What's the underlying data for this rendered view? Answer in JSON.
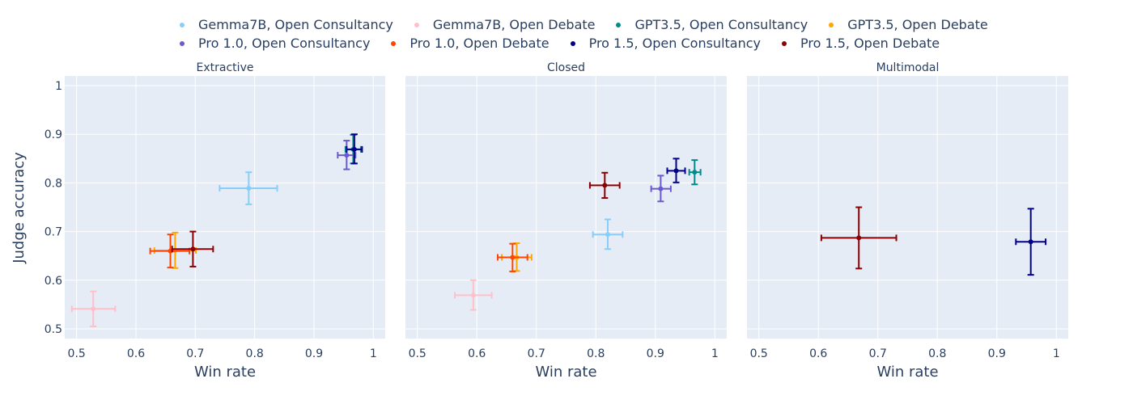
{
  "chart_data": {
    "type": "scatter",
    "ylabel": "Judge accuracy",
    "xlabel": "Win rate",
    "xlim": [
      0.48,
      1.02
    ],
    "ylim": [
      0.48,
      1.02
    ],
    "xticks": [
      "0.5",
      "0.6",
      "0.7",
      "0.8",
      "0.9",
      "1"
    ],
    "xtick_values": [
      0.5,
      0.6,
      0.7,
      0.8,
      0.9,
      1.0
    ],
    "yticks": [
      "0.5",
      "0.6",
      "0.7",
      "0.8",
      "0.9",
      "1"
    ],
    "ytick_values": [
      0.5,
      0.6,
      0.7,
      0.8,
      0.9,
      1.0
    ],
    "grid": true,
    "legend_position": "top-center",
    "legend": [
      {
        "name": "Gemma7B, Open Consultancy",
        "color": "#87cefa"
      },
      {
        "name": "Gemma7B, Open Debate",
        "color": "#ffc0cb"
      },
      {
        "name": "GPT3.5, Open Consultancy",
        "color": "#008b8b"
      },
      {
        "name": "GPT3.5, Open Debate",
        "color": "#ffa500"
      },
      {
        "name": "Pro 1.0, Open Consultancy",
        "color": "#6a5acd"
      },
      {
        "name": "Pro 1.0, Open Debate",
        "color": "#ff4500"
      },
      {
        "name": "Pro 1.5, Open Consultancy",
        "color": "#00008b"
      },
      {
        "name": "Pro 1.5, Open Debate",
        "color": "#8b0000"
      }
    ],
    "panels": [
      {
        "title": "Extractive",
        "points": [
          {
            "series": 1,
            "x": 0.528,
            "y": 0.541,
            "x_err": [
              0.492,
              0.565
            ],
            "y_err": [
              0.505,
              0.577
            ]
          },
          {
            "series": 0,
            "x": 0.79,
            "y": 0.789,
            "x_err": [
              0.741,
              0.838
            ],
            "y_err": [
              0.756,
              0.822
            ]
          },
          {
            "series": 3,
            "x": 0.666,
            "y": 0.661,
            "x_err": [
              0.631,
              0.701
            ],
            "y_err": [
              0.625,
              0.698
            ]
          },
          {
            "series": 5,
            "x": 0.658,
            "y": 0.66,
            "x_err": [
              0.624,
              0.69
            ],
            "y_err": [
              0.626,
              0.694
            ]
          },
          {
            "series": 7,
            "x": 0.696,
            "y": 0.664,
            "x_err": [
              0.661,
              0.73
            ],
            "y_err": [
              0.628,
              0.7
            ]
          },
          {
            "series": 2,
            "x": 0.966,
            "y": 0.869,
            "x_err": [
              0.953,
              0.979
            ],
            "y_err": [
              0.84,
              0.899
            ]
          },
          {
            "series": 4,
            "x": 0.955,
            "y": 0.857,
            "x_err": [
              0.94,
              0.97
            ],
            "y_err": [
              0.828,
              0.887
            ]
          },
          {
            "series": 6,
            "x": 0.968,
            "y": 0.869,
            "x_err": [
              0.955,
              0.981
            ],
            "y_err": [
              0.84,
              0.9
            ]
          }
        ]
      },
      {
        "title": "Closed",
        "points": [
          {
            "series": 1,
            "x": 0.594,
            "y": 0.569,
            "x_err": [
              0.563,
              0.625
            ],
            "y_err": [
              0.539,
              0.6
            ]
          },
          {
            "series": 0,
            "x": 0.82,
            "y": 0.694,
            "x_err": [
              0.795,
              0.845
            ],
            "y_err": [
              0.664,
              0.725
            ]
          },
          {
            "series": 3,
            "x": 0.667,
            "y": 0.647,
            "x_err": [
              0.642,
              0.692
            ],
            "y_err": [
              0.619,
              0.676
            ]
          },
          {
            "series": 5,
            "x": 0.66,
            "y": 0.647,
            "x_err": [
              0.635,
              0.685
            ],
            "y_err": [
              0.618,
              0.675
            ]
          },
          {
            "series": 7,
            "x": 0.815,
            "y": 0.795,
            "x_err": [
              0.79,
              0.84
            ],
            "y_err": [
              0.769,
              0.821
            ]
          },
          {
            "series": 4,
            "x": 0.909,
            "y": 0.788,
            "x_err": [
              0.893,
              0.926
            ],
            "y_err": [
              0.762,
              0.815
            ]
          },
          {
            "series": 6,
            "x": 0.935,
            "y": 0.825,
            "x_err": [
              0.92,
              0.95
            ],
            "y_err": [
              0.801,
              0.85
            ]
          },
          {
            "series": 2,
            "x": 0.966,
            "y": 0.822,
            "x_err": [
              0.957,
              0.976
            ],
            "y_err": [
              0.797,
              0.847
            ]
          }
        ]
      },
      {
        "title": "Multimodal",
        "points": [
          {
            "series": 7,
            "x": 0.668,
            "y": 0.687,
            "x_err": [
              0.605,
              0.731
            ],
            "y_err": [
              0.624,
              0.75
            ]
          },
          {
            "series": 6,
            "x": 0.957,
            "y": 0.679,
            "x_err": [
              0.932,
              0.982
            ],
            "y_err": [
              0.611,
              0.747
            ]
          }
        ]
      }
    ]
  }
}
